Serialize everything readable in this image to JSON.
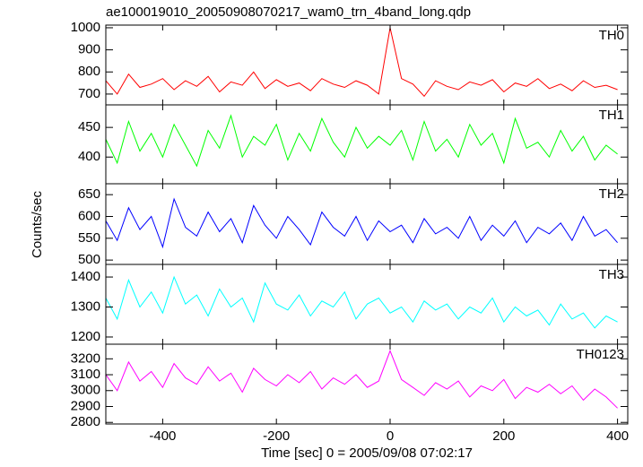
{
  "chart_data": [
    {
      "type": "line",
      "title": "ae100019010_20050908070217_wam0_trn_4band_long.qdp",
      "x": [
        -500,
        -480,
        -460,
        -440,
        -420,
        -400,
        -380,
        -360,
        -340,
        -320,
        -300,
        -280,
        -260,
        -240,
        -220,
        -200,
        -180,
        -160,
        -140,
        -120,
        -100,
        -80,
        -60,
        -40,
        -20,
        0,
        20,
        40,
        60,
        80,
        100,
        120,
        140,
        160,
        180,
        200,
        220,
        240,
        260,
        280,
        300,
        320,
        340,
        360,
        380,
        400
      ],
      "series": [
        {
          "name": "TH0",
          "color": "#ff0000",
          "values": [
            760,
            700,
            790,
            730,
            745,
            770,
            720,
            760,
            735,
            780,
            710,
            755,
            740,
            800,
            725,
            765,
            735,
            750,
            715,
            770,
            745,
            730,
            760,
            740,
            700,
            1000,
            770,
            745,
            690,
            760,
            735,
            720,
            755,
            740,
            765,
            710,
            750,
            735,
            770,
            725,
            745,
            715,
            760,
            730,
            740,
            720
          ]
        }
      ],
      "xlim": [
        -500,
        418
      ],
      "ylim": [
        651,
        1012
      ],
      "yticks": [
        700,
        800,
        900,
        1000
      ]
    },
    {
      "type": "line",
      "x": [
        -500,
        -480,
        -460,
        -440,
        -420,
        -400,
        -380,
        -360,
        -340,
        -320,
        -300,
        -280,
        -260,
        -240,
        -220,
        -200,
        -180,
        -160,
        -140,
        -120,
        -100,
        -80,
        -60,
        -40,
        -20,
        0,
        20,
        40,
        60,
        80,
        100,
        120,
        140,
        160,
        180,
        200,
        220,
        240,
        260,
        280,
        300,
        320,
        340,
        360,
        380,
        400
      ],
      "series": [
        {
          "name": "TH1",
          "color": "#00ff00",
          "values": [
            430,
            390,
            460,
            410,
            440,
            400,
            455,
            420,
            385,
            445,
            415,
            470,
            400,
            435,
            420,
            455,
            395,
            440,
            410,
            465,
            425,
            400,
            450,
            415,
            435,
            420,
            445,
            395,
            460,
            410,
            430,
            400,
            455,
            420,
            440,
            390,
            465,
            415,
            425,
            400,
            445,
            410,
            435,
            395,
            420,
            405
          ]
        }
      ],
      "xlim": [
        -500,
        418
      ],
      "ylim": [
        355,
        488
      ],
      "yticks": [
        400,
        450
      ]
    },
    {
      "type": "line",
      "ylabel": "Counts/sec",
      "x": [
        -500,
        -480,
        -460,
        -440,
        -420,
        -400,
        -380,
        -360,
        -340,
        -320,
        -300,
        -280,
        -260,
        -240,
        -220,
        -200,
        -180,
        -160,
        -140,
        -120,
        -100,
        -80,
        -60,
        -40,
        -20,
        0,
        20,
        40,
        60,
        80,
        100,
        120,
        140,
        160,
        180,
        200,
        220,
        240,
        260,
        280,
        300,
        320,
        340,
        360,
        380,
        400
      ],
      "series": [
        {
          "name": "TH2",
          "color": "#0000ff",
          "values": [
            590,
            545,
            620,
            570,
            600,
            530,
            640,
            575,
            555,
            610,
            565,
            595,
            540,
            625,
            580,
            550,
            600,
            570,
            535,
            610,
            575,
            555,
            600,
            545,
            590,
            565,
            580,
            540,
            595,
            560,
            575,
            550,
            600,
            545,
            580,
            555,
            590,
            540,
            575,
            560,
            585,
            545,
            600,
            555,
            570,
            540
          ]
        }
      ],
      "xlim": [
        -500,
        418
      ],
      "ylim": [
        490,
        675
      ],
      "yticks": [
        500,
        550,
        600,
        650
      ]
    },
    {
      "type": "line",
      "x": [
        -500,
        -480,
        -460,
        -440,
        -420,
        -400,
        -380,
        -360,
        -340,
        -320,
        -300,
        -280,
        -260,
        -240,
        -220,
        -200,
        -180,
        -160,
        -140,
        -120,
        -100,
        -80,
        -60,
        -40,
        -20,
        0,
        20,
        40,
        60,
        80,
        100,
        120,
        140,
        160,
        180,
        200,
        220,
        240,
        260,
        280,
        300,
        320,
        340,
        360,
        380,
        400
      ],
      "series": [
        {
          "name": "TH3",
          "color": "#00ffff",
          "values": [
            1330,
            1260,
            1390,
            1300,
            1350,
            1280,
            1400,
            1310,
            1340,
            1270,
            1360,
            1300,
            1330,
            1250,
            1380,
            1310,
            1290,
            1340,
            1270,
            1320,
            1300,
            1350,
            1260,
            1310,
            1330,
            1280,
            1300,
            1250,
            1320,
            1290,
            1310,
            1260,
            1300,
            1280,
            1330,
            1250,
            1300,
            1270,
            1290,
            1240,
            1310,
            1260,
            1280,
            1230,
            1270,
            1250
          ]
        }
      ],
      "xlim": [
        -500,
        418
      ],
      "ylim": [
        1176,
        1442
      ],
      "yticks": [
        1200,
        1300,
        1400
      ]
    },
    {
      "type": "line",
      "xlabel": "Time [sec] 0 = 2005/09/08 07:02:17",
      "x": [
        -500,
        -480,
        -460,
        -440,
        -420,
        -400,
        -380,
        -360,
        -340,
        -320,
        -300,
        -280,
        -260,
        -240,
        -220,
        -200,
        -180,
        -160,
        -140,
        -120,
        -100,
        -80,
        -60,
        -40,
        -20,
        0,
        20,
        40,
        60,
        80,
        100,
        120,
        140,
        160,
        180,
        200,
        220,
        240,
        260,
        280,
        300,
        320,
        340,
        360,
        380,
        400
      ],
      "series": [
        {
          "name": "TH0123",
          "color": "#ff00ff",
          "values": [
            3100,
            3000,
            3180,
            3060,
            3120,
            3020,
            3170,
            3080,
            3040,
            3150,
            3060,
            3110,
            2990,
            3140,
            3070,
            3030,
            3100,
            3050,
            3120,
            3010,
            3080,
            3040,
            3100,
            3020,
            3060,
            3250,
            3070,
            3020,
            2970,
            3050,
            3010,
            3060,
            2960,
            3030,
            3000,
            3070,
            2950,
            3020,
            2990,
            3040,
            2980,
            3030,
            2940,
            3010,
            2960,
            2890
          ]
        }
      ],
      "xlim": [
        -500,
        418
      ],
      "ylim": [
        2790,
        3292
      ],
      "yticks": [
        2800,
        2900,
        3000,
        3100,
        3200
      ],
      "xticks": [
        -400,
        -200,
        0,
        200,
        400
      ]
    }
  ]
}
